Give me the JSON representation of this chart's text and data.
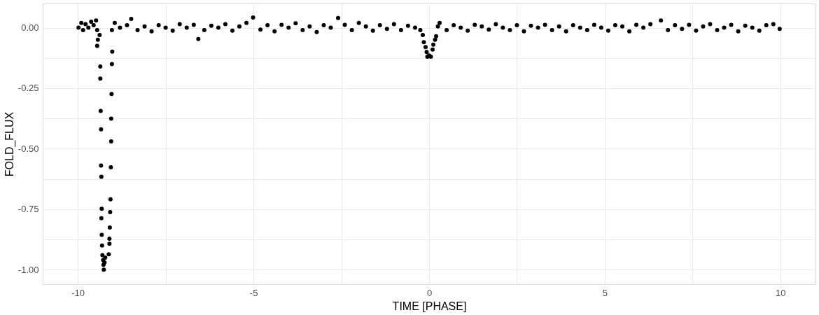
{
  "chart_data": {
    "type": "scatter",
    "xlabel": "TIME [PHASE]",
    "ylabel": "FOLD_FLUX",
    "xlim": [
      -11,
      11
    ],
    "ylim": [
      -1.06,
      0.1
    ],
    "xticks": [
      -10,
      {
        "value": -7.5,
        "label": null
      },
      -5,
      {
        "value": -2.5,
        "label": null
      },
      0,
      {
        "value": 2.5,
        "label": null
      },
      5,
      {
        "value": 7.5,
        "label": null
      },
      10
    ],
    "yticks": [
      {
        "value": -1,
        "label": "-1.00"
      },
      {
        "value": -0.875,
        "label": null
      },
      {
        "value": -0.75,
        "label": "-0.75"
      },
      {
        "value": -0.625,
        "label": null
      },
      {
        "value": -0.5,
        "label": "-0.50"
      },
      {
        "value": -0.375,
        "label": null
      },
      {
        "value": -0.25,
        "label": "-0.25"
      },
      {
        "value": -0.125,
        "label": null
      },
      {
        "value": 0,
        "label": "0.00"
      }
    ],
    "grid": true,
    "marker": "circle",
    "series": [
      {
        "color": "#000000",
        "x": [
          -9.98,
          -9.9,
          -9.85,
          -9.78,
          -9.7,
          -9.62,
          -9.55,
          -9.48,
          -9.45,
          -9.43,
          -9.45,
          -9.38,
          -9.36,
          -9.36,
          -9.35,
          -9.34,
          -9.34,
          -9.33,
          -9.32,
          -9.33,
          -9.32,
          -9.31,
          -9.3,
          -9.28,
          -9.27,
          -9.26,
          -9.24,
          -9.22,
          -9.12,
          -9.1,
          -9.1,
          -9.09,
          -9.08,
          -9.07,
          -9.06,
          -9.05,
          -9.05,
          -9.04,
          -9.03,
          -9.02,
          -9.03,
          -8.95,
          -8.8,
          -8.6,
          -8.48,
          -8.3,
          -8.1,
          -7.9,
          -7.7,
          -7.5,
          -7.3,
          -7.1,
          -6.9,
          -6.7,
          -6.57,
          -6.4,
          -6.2,
          -6.0,
          -5.8,
          -5.6,
          -5.4,
          -5.2,
          -5.01,
          -4.8,
          -4.6,
          -4.4,
          -4.2,
          -4.0,
          -3.8,
          -3.6,
          -3.4,
          -3.2,
          -3.0,
          -2.8,
          -2.59,
          -2.4,
          -2.2,
          -2.0,
          -1.8,
          -1.6,
          -1.4,
          -1.2,
          -1.0,
          -0.8,
          -0.6,
          -0.4,
          -0.25,
          -0.18,
          -0.15,
          -0.1,
          -0.07,
          -0.05,
          0.0,
          0.05,
          0.1,
          0.12,
          0.17,
          0.2,
          0.25,
          0.3,
          0.5,
          0.7,
          0.9,
          1.1,
          1.3,
          1.5,
          1.7,
          1.9,
          2.1,
          2.3,
          2.5,
          2.7,
          2.9,
          3.1,
          3.3,
          3.5,
          3.7,
          3.9,
          4.1,
          4.3,
          4.5,
          4.7,
          4.9,
          5.1,
          5.3,
          5.5,
          5.7,
          5.9,
          6.1,
          6.3,
          6.6,
          6.8,
          7.0,
          7.2,
          7.4,
          7.6,
          7.8,
          8.0,
          8.2,
          8.4,
          8.6,
          8.8,
          9.0,
          9.2,
          9.4,
          9.6,
          9.8,
          9.98
        ],
        "values": [
          0.0,
          0.02,
          -0.01,
          0.015,
          0.0,
          0.025,
          0.01,
          0.03,
          -0.01,
          -0.05,
          -0.075,
          -0.03,
          -0.16,
          -0.21,
          -0.344,
          -0.42,
          -0.57,
          -0.616,
          -0.748,
          -0.787,
          -0.856,
          -0.9,
          -0.94,
          -0.96,
          -0.98,
          -1.0,
          -0.97,
          -0.95,
          -0.936,
          -0.893,
          -0.872,
          -0.826,
          -0.762,
          -0.709,
          -0.577,
          -0.47,
          -0.376,
          -0.274,
          -0.15,
          -0.099,
          -0.01,
          0.02,
          0.0,
          0.01,
          0.036,
          -0.01,
          0.005,
          -0.015,
          0.01,
          0.0,
          -0.012,
          0.015,
          0.0,
          0.012,
          -0.047,
          -0.01,
          0.008,
          0.0,
          0.015,
          -0.012,
          0.005,
          0.02,
          0.042,
          -0.008,
          0.01,
          -0.015,
          0.012,
          0.0,
          0.018,
          -0.01,
          0.005,
          -0.018,
          0.01,
          0.0,
          0.04,
          0.012,
          -0.01,
          0.02,
          0.005,
          -0.012,
          0.01,
          -0.005,
          0.015,
          -0.01,
          0.008,
          0.0,
          -0.01,
          -0.03,
          -0.06,
          -0.08,
          -0.1,
          -0.12,
          -0.115,
          -0.12,
          -0.09,
          -0.07,
          -0.05,
          -0.035,
          0.005,
          0.02,
          -0.01,
          0.01,
          0.0,
          -0.012,
          0.012,
          0.005,
          -0.008,
          0.015,
          0.0,
          -0.01,
          0.01,
          -0.015,
          0.008,
          0.0,
          0.012,
          -0.01,
          0.005,
          -0.015,
          0.01,
          0.0,
          -0.01,
          0.012,
          0.0,
          -0.012,
          0.01,
          0.005,
          -0.015,
          0.012,
          0.0,
          0.015,
          0.03,
          -0.01,
          0.01,
          -0.005,
          0.012,
          -0.012,
          0.005,
          0.015,
          -0.01,
          0.0,
          0.012,
          -0.015,
          0.008,
          0.0,
          -0.012,
          0.01,
          0.015,
          -0.005
        ]
      }
    ]
  }
}
